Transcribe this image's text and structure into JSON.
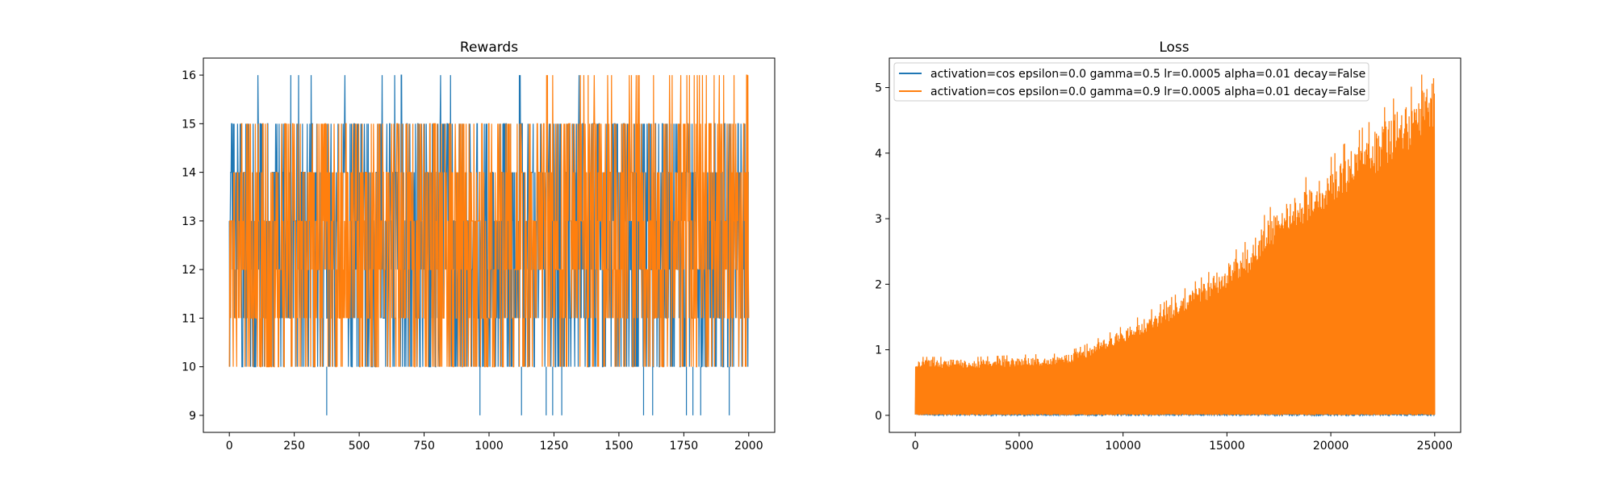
{
  "colors": {
    "series1": "#1f77b4",
    "series2": "#ff7f0e",
    "background": "#ffffff",
    "frame": "#000000"
  },
  "chart_data": [
    {
      "type": "line",
      "title": "Rewards",
      "xlabel": "",
      "ylabel": "",
      "xlim": [
        -100,
        2100
      ],
      "ylim": [
        8.65,
        16.35
      ],
      "x_ticks": [
        0,
        250,
        500,
        750,
        1000,
        1250,
        1500,
        1750,
        2000
      ],
      "y_ticks": [
        9,
        10,
        11,
        12,
        13,
        14,
        15,
        16
      ],
      "grid": false,
      "legend": false,
      "x_range": [
        0,
        2000
      ],
      "series": [
        {
          "color": "#1f77b4",
          "values_range": [
            9,
            16
          ],
          "typical_range": [
            10,
            15
          ],
          "min": 9,
          "max": 16,
          "dips_to_9_at": [
            375,
            965,
            1125,
            1220,
            1245,
            1280,
            1595,
            1630,
            1760,
            1785,
            1815,
            1925
          ]
        },
        {
          "color": "#ff7f0e",
          "values_range": [
            10,
            16
          ],
          "typical_range": [
            10,
            15
          ],
          "min": 10,
          "max": 16,
          "peaks_to_16_first_at": 1220
        }
      ]
    },
    {
      "type": "line",
      "title": "Loss",
      "xlabel": "",
      "ylabel": "",
      "xlim": [
        -1250,
        26250
      ],
      "ylim": [
        -0.26,
        5.45
      ],
      "x_ticks": [
        0,
        5000,
        10000,
        15000,
        20000,
        25000
      ],
      "y_ticks": [
        0,
        1,
        2,
        3,
        4,
        5
      ],
      "grid": false,
      "legend": "upper-left",
      "series": [
        {
          "name": "activation=cos epsilon=0.0 gamma=0.5 lr=0.0005 alpha=0.01 decay=False",
          "color": "#1f77b4",
          "x": [
            0,
            200,
            500,
            1000,
            2000,
            4000,
            6000,
            10000,
            15000,
            20000,
            25000
          ],
          "upper": [
            0.35,
            0.08,
            0.04,
            0.03,
            0.02,
            0.02,
            0.03,
            0.02,
            0.02,
            0.02,
            0.02
          ],
          "lower": [
            0,
            0,
            0,
            0,
            0,
            0,
            0,
            0,
            0,
            0,
            0
          ]
        },
        {
          "name": "activation=cos epsilon=0.0 gamma=0.9 lr=0.0005 alpha=0.01 decay=False",
          "color": "#ff7f0e",
          "x": [
            0,
            1000,
            3000,
            5000,
            7000,
            8000,
            9000,
            10000,
            12000,
            14000,
            15000,
            16000,
            17000,
            18000,
            19000,
            20000,
            21000,
            22000,
            23000,
            24000,
            25000
          ],
          "upper": [
            0.85,
            0.85,
            0.85,
            0.88,
            0.9,
            1.0,
            1.15,
            1.3,
            1.65,
            2.05,
            2.3,
            2.55,
            3.0,
            3.3,
            3.5,
            3.75,
            4.05,
            4.3,
            4.6,
            4.8,
            5.2
          ],
          "lower": [
            0,
            0,
            0,
            0,
            0,
            0,
            0,
            0,
            0,
            0,
            0,
            0,
            0,
            0,
            0,
            0,
            0,
            0,
            0,
            0,
            0
          ]
        }
      ]
    }
  ]
}
